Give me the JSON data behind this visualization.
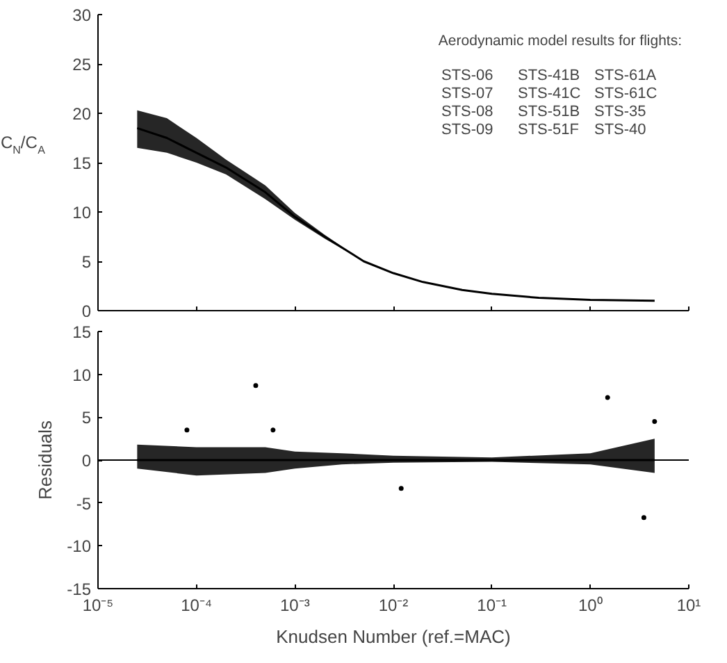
{
  "chart_data": [
    {
      "type": "line",
      "ylabel": "C$_{N}$/C$_{A}$",
      "log": "x",
      "xlim": [
        1e-05,
        10
      ],
      "ylim": [
        0,
        30
      ],
      "yticks": [
        0,
        5,
        10,
        15,
        20,
        25,
        30
      ],
      "xticks": [
        {
          "value": 1e-05,
          "label": null
        },
        {
          "value": 0.0001,
          "label": null
        },
        {
          "value": 0.001,
          "label": null
        },
        {
          "value": 0.01,
          "label": null
        },
        {
          "value": 0.1,
          "label": null
        },
        {
          "value": 1,
          "label": null
        },
        {
          "value": 10,
          "label": null
        }
      ],
      "tick_labels": "y",
      "grid": false,
      "annotations": [
        "Aerodynamic model results for flights:",
        "STS-06",
        "STS-07",
        "STS-08",
        "STS-09",
        "STS-41B",
        "STS-41C",
        "STS-51B",
        "STS-51F",
        "STS-61A",
        "STS-61C",
        "STS-35",
        "STS-40"
      ],
      "series": [
        {
          "color": "#000000",
          "x": [
            2.5e-05,
            5e-05,
            0.0001,
            0.0002,
            0.0005,
            0.001,
            0.002,
            0.005,
            0.01,
            0.02,
            0.05,
            0.1,
            0.3,
            1,
            4.5
          ],
          "values": [
            18.5,
            17.5,
            16,
            14.5,
            12,
            9.5,
            7.5,
            5,
            3.8,
            2.9,
            2.1,
            1.7,
            1.3,
            1.1,
            1.0
          ],
          "lower": [
            16.5,
            16.0,
            15,
            13.8,
            11.3,
            9.2,
            7.3,
            5,
            3.8,
            2.9,
            2.1,
            1.7,
            1.3,
            1.1,
            1.0
          ],
          "upper": [
            20.3,
            19.5,
            17.5,
            15.3,
            12.7,
            9.9,
            7.7,
            5,
            3.8,
            2.9,
            2.1,
            1.7,
            1.3,
            1.1,
            1.0
          ]
        }
      ]
    },
    {
      "type": "line",
      "xlabel": "Knudsen Number (ref.=MAC)",
      "ylabel": "Residuals",
      "log": "x",
      "xlim": [
        1e-05,
        10
      ],
      "ylim": [
        -15,
        15
      ],
      "yticks": [
        -15,
        -10,
        -5,
        0,
        5,
        10,
        15
      ],
      "xticks": [
        {
          "value": 1e-05,
          "label": "10⁻⁵"
        },
        {
          "value": 0.0001,
          "label": "10⁻⁴"
        },
        {
          "value": 0.001,
          "label": "10⁻³"
        },
        {
          "value": 0.01,
          "label": "10⁻²"
        },
        {
          "value": 0.1,
          "label": "10⁻¹"
        },
        {
          "value": 1,
          "label": "10⁰"
        },
        {
          "value": 10,
          "label": "10¹"
        }
      ],
      "grid": false,
      "ref_lines": [
        {
          "axis": "y",
          "value": 0,
          "color": "#000000"
        }
      ],
      "series": [
        {
          "color": "#000000",
          "x": [
            2.5e-05,
            0.0001,
            0.0005,
            0.001,
            0.003,
            0.01,
            0.1,
            1,
            4.5
          ],
          "values": [
            0,
            0,
            0,
            0,
            0,
            0,
            0,
            0,
            0
          ],
          "lower": [
            -1,
            -1.8,
            -1.5,
            -1,
            -0.5,
            -0.3,
            -0.2,
            -0.5,
            -1.5
          ],
          "upper": [
            1.8,
            1.5,
            1.5,
            1,
            0.8,
            0.5,
            0.3,
            0.8,
            2.5
          ]
        },
        {
          "type": "scatter",
          "color": "#000000",
          "marker": "circle",
          "x": [
            0.0004,
            8e-05,
            0.0006,
            1.5,
            3.5,
            4.5,
            0.012
          ],
          "values": [
            8.7,
            3.5,
            3.5,
            7.3,
            -6.7,
            4.5,
            -3.3
          ]
        }
      ]
    }
  ]
}
